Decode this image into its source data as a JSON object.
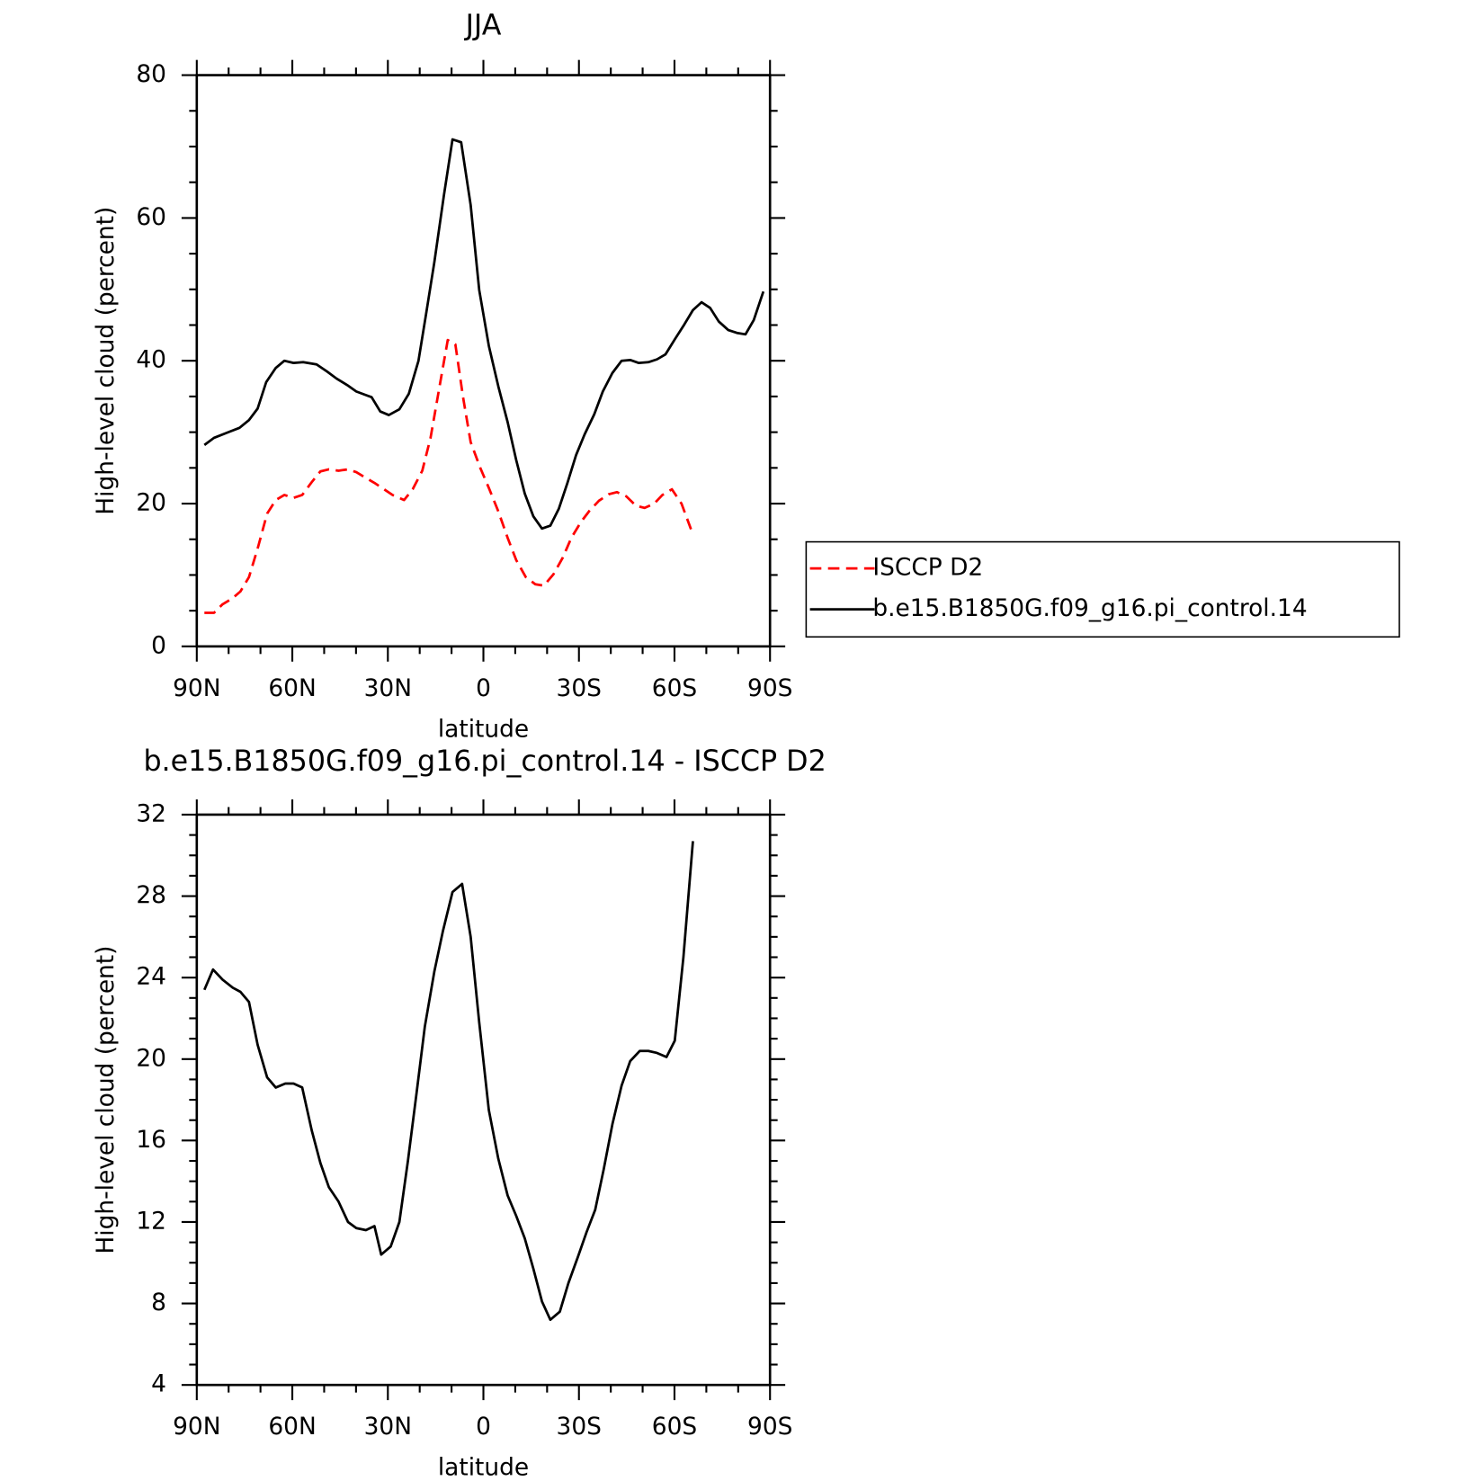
{
  "chart_data": [
    {
      "type": "line",
      "title": "JJA",
      "xlabel": "latitude",
      "ylabel": "High-level cloud (percent)",
      "xlim": [
        90,
        -90
      ],
      "xticks": [
        {
          "value": 90,
          "label": "90N"
        },
        {
          "value": 60,
          "label": "60N"
        },
        {
          "value": 30,
          "label": "30N"
        },
        0,
        {
          "value": -30,
          "label": "30S"
        },
        {
          "value": -60,
          "label": "60S"
        },
        {
          "value": -90,
          "label": "90S"
        }
      ],
      "ylim": [
        0,
        80
      ],
      "yticks": [
        0,
        20,
        40,
        60,
        80
      ],
      "legend": "right",
      "series": [
        {
          "name": "ISCCP D2",
          "color": "#ff0000",
          "dashed": true,
          "x": [
            87.6,
            84.6,
            81.9,
            78.9,
            76.3,
            73.6,
            70.9,
            67.9,
            65.2,
            62.5,
            59.6,
            56.9,
            53.9,
            51.2,
            48.5,
            45.5,
            42.5,
            39.9,
            36.9,
            34.2,
            31.2,
            28.5,
            24.9,
            22.2,
            19.2,
            16.6,
            13.6,
            11.2,
            8.8,
            6.4,
            4.0,
            1.0,
            -1.7,
            -4.7,
            -7.6,
            -10.3,
            -13.3,
            -16.3,
            -19.0,
            -22.0,
            -24.9,
            -27.6,
            -30.6,
            -33.3,
            -36.3,
            -39.3,
            -41.9,
            -44.9,
            -47.9,
            -50.6,
            -53.6,
            -56.2,
            -59.2,
            -62.2,
            -65.2
          ],
          "values": [
            4.7,
            4.7,
            5.9,
            6.7,
            7.7,
            9.7,
            13.7,
            18.6,
            20.5,
            21.2,
            20.8,
            21.2,
            23.0,
            24.5,
            24.8,
            24.6,
            24.8,
            24.4,
            23.6,
            22.9,
            22.0,
            21.2,
            20.5,
            22.0,
            24.6,
            29.2,
            36.8,
            42.9,
            42.3,
            34.9,
            28.6,
            25.0,
            22.2,
            18.9,
            15.2,
            12.1,
            9.7,
            8.7,
            8.5,
            10.1,
            12.4,
            15.2,
            17.4,
            19.0,
            20.4,
            21.3,
            21.6,
            21.0,
            19.7,
            19.4,
            20.0,
            21.2,
            22.0,
            20.0,
            16.4
          ]
        },
        {
          "name": "b.e15.B1850G.f09_g16.pi_control.14",
          "color": "#000000",
          "dashed": false,
          "x": [
            87.6,
            84.6,
            80.1,
            76.6,
            73.6,
            70.9,
            68.2,
            65.2,
            62.5,
            59.6,
            56.6,
            52.4,
            49.1,
            46.1,
            42.8,
            39.9,
            36.9,
            35.1,
            32.4,
            29.7,
            26.4,
            23.4,
            20.4,
            18.1,
            15.4,
            12.4,
            9.7,
            7.0,
            4.0,
            1.3,
            -1.7,
            -4.7,
            -7.6,
            -10.3,
            -13.0,
            -15.7,
            -18.4,
            -21.0,
            -23.7,
            -26.4,
            -29.1,
            -31.8,
            -34.8,
            -37.5,
            -40.5,
            -43.4,
            -46.1,
            -48.8,
            -51.8,
            -54.5,
            -57.2,
            -60.1,
            -63.1,
            -65.8,
            -68.5,
            -71.2,
            -73.9,
            -76.9,
            -79.6,
            -82.3,
            -84.9,
            -87.9
          ],
          "values": [
            28.2,
            29.2,
            30.0,
            30.6,
            31.7,
            33.3,
            37.0,
            39.0,
            40.0,
            39.7,
            39.8,
            39.5,
            38.5,
            37.5,
            36.6,
            35.7,
            35.2,
            34.9,
            32.9,
            32.4,
            33.2,
            35.4,
            40.0,
            46.3,
            53.8,
            63.2,
            71.0,
            70.6,
            61.8,
            49.9,
            42.1,
            36.4,
            31.4,
            26.1,
            21.4,
            18.2,
            16.5,
            16.9,
            19.3,
            22.9,
            26.8,
            29.7,
            32.5,
            35.7,
            38.3,
            40.0,
            40.1,
            39.7,
            39.8,
            40.2,
            40.9,
            43.0,
            45.1,
            47.1,
            48.2,
            47.4,
            45.5,
            44.3,
            43.9,
            43.7,
            45.7,
            49.7
          ]
        }
      ]
    },
    {
      "type": "line",
      "title": "b.e15.B1850G.f09_g16.pi_control.14 - ISCCP D2",
      "xlabel": "latitude",
      "ylabel": "High-level cloud (percent)",
      "xlim": [
        90,
        -90
      ],
      "xticks": [
        {
          "value": 90,
          "label": "90N"
        },
        {
          "value": 60,
          "label": "60N"
        },
        {
          "value": 30,
          "label": "30N"
        },
        0,
        {
          "value": -30,
          "label": "30S"
        },
        {
          "value": -60,
          "label": "60S"
        },
        {
          "value": -90,
          "label": "90S"
        }
      ],
      "ylim": [
        4,
        32
      ],
      "yticks": [
        4,
        8,
        12,
        16,
        20,
        24,
        28,
        32
      ],
      "series": [
        {
          "color": "#000000",
          "dashed": false,
          "x": [
            87.6,
            84.9,
            81.9,
            78.7,
            76.3,
            73.6,
            70.9,
            67.9,
            65.2,
            62.2,
            59.6,
            56.9,
            53.9,
            51.2,
            48.5,
            45.5,
            42.5,
            39.9,
            36.9,
            34.2,
            32.1,
            29.1,
            26.4,
            23.7,
            21.0,
            18.4,
            15.4,
            12.7,
            9.7,
            6.7,
            4.0,
            1.3,
            -1.7,
            -4.7,
            -7.6,
            -10.3,
            -13.0,
            -15.7,
            -18.4,
            -21.0,
            -24.0,
            -26.7,
            -29.7,
            -32.4,
            -35.1,
            -37.8,
            -40.5,
            -43.4,
            -46.1,
            -49.1,
            -51.8,
            -54.5,
            -57.5,
            -60.1,
            -62.8,
            -65.8
          ],
          "values": [
            23.4,
            24.4,
            23.9,
            23.5,
            23.3,
            22.8,
            20.7,
            19.1,
            18.6,
            18.8,
            18.8,
            18.6,
            16.5,
            14.9,
            13.7,
            13.0,
            12.0,
            11.7,
            11.6,
            11.8,
            10.4,
            10.8,
            12.0,
            15.0,
            18.3,
            21.6,
            24.3,
            26.3,
            28.2,
            28.6,
            26.0,
            21.8,
            17.5,
            15.1,
            13.3,
            12.3,
            11.2,
            9.7,
            8.1,
            7.2,
            7.6,
            9.0,
            10.3,
            11.5,
            12.6,
            14.6,
            16.8,
            18.7,
            19.9,
            20.4,
            20.4,
            20.3,
            20.1,
            20.9,
            25.0,
            30.7
          ]
        }
      ]
    }
  ]
}
